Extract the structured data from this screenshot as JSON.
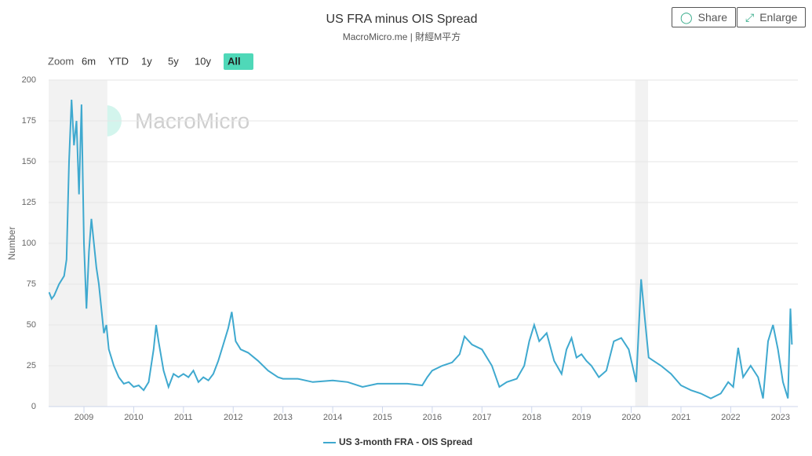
{
  "chart_data": {
    "type": "line",
    "title": "US FRA minus OIS Spread",
    "subtitle": "MacroMicro.me | 財經M平方",
    "watermark": "MacroMicro",
    "zoom_label": "Zoom",
    "zoom_options": [
      "6m",
      "YTD",
      "1y",
      "5y",
      "10y",
      "All"
    ],
    "zoom_selected": "All",
    "buttons": [
      "Share",
      "Enlarge"
    ],
    "y_label": "Number",
    "xlim": [
      2008.29,
      2023.35
    ],
    "xticks": [
      2009,
      2010,
      2011,
      2012,
      2013,
      2014,
      2015,
      2016,
      2017,
      2018,
      2019,
      2020,
      2021,
      2022,
      2023
    ],
    "ylim": [
      0,
      200
    ],
    "yticks": [
      0,
      25,
      50,
      75,
      100,
      125,
      150,
      175,
      200
    ],
    "grid": true,
    "shaded_ranges": [
      [
        2008.29,
        2009.47
      ],
      [
        2020.08,
        2020.34
      ]
    ],
    "x": [
      2008.3,
      2008.35,
      2008.4,
      2008.5,
      2008.6,
      2008.65,
      2008.7,
      2008.75,
      2008.8,
      2008.85,
      2008.9,
      2008.95,
      2009.0,
      2009.05,
      2009.1,
      2009.15,
      2009.2,
      2009.25,
      2009.3,
      2009.35,
      2009.4,
      2009.45,
      2009.5,
      2009.6,
      2009.7,
      2009.8,
      2009.9,
      2010.0,
      2010.1,
      2010.2,
      2010.3,
      2010.4,
      2010.45,
      2010.5,
      2010.6,
      2010.7,
      2010.8,
      2010.9,
      2011.0,
      2011.1,
      2011.2,
      2011.3,
      2011.4,
      2011.5,
      2011.6,
      2011.7,
      2011.8,
      2011.9,
      2011.97,
      2012.05,
      2012.15,
      2012.3,
      2012.5,
      2012.7,
      2012.9,
      2013.0,
      2013.3,
      2013.6,
      2014.0,
      2014.3,
      2014.6,
      2014.9,
      2015.2,
      2015.5,
      2015.8,
      2015.9,
      2016.0,
      2016.2,
      2016.4,
      2016.55,
      2016.65,
      2016.8,
      2017.0,
      2017.2,
      2017.35,
      2017.5,
      2017.7,
      2017.85,
      2017.95,
      2018.05,
      2018.15,
      2018.3,
      2018.45,
      2018.6,
      2018.7,
      2018.8,
      2018.9,
      2019.0,
      2019.1,
      2019.2,
      2019.35,
      2019.5,
      2019.65,
      2019.8,
      2019.95,
      2020.1,
      2020.2,
      2020.27,
      2020.35,
      2020.45,
      2020.6,
      2020.8,
      2021.0,
      2021.2,
      2021.4,
      2021.6,
      2021.8,
      2021.95,
      2022.05,
      2022.15,
      2022.25,
      2022.4,
      2022.55,
      2022.65,
      2022.75,
      2022.85,
      2022.95,
      2023.05,
      2023.15,
      2023.2,
      2023.23
    ],
    "series": [
      {
        "name": "US 3-month FRA - OIS Spread",
        "color": "#3fa9cf",
        "values": [
          70,
          66,
          68,
          75,
          80,
          90,
          150,
          188,
          160,
          175,
          130,
          185,
          100,
          60,
          95,
          115,
          100,
          85,
          75,
          60,
          45,
          50,
          35,
          25,
          18,
          14,
          15,
          12,
          13,
          10,
          15,
          35,
          50,
          40,
          22,
          12,
          20,
          18,
          20,
          18,
          22,
          15,
          18,
          16,
          20,
          28,
          38,
          48,
          58,
          40,
          35,
          33,
          28,
          22,
          18,
          17,
          17,
          15,
          16,
          15,
          12,
          14,
          14,
          14,
          13,
          18,
          22,
          25,
          27,
          32,
          43,
          38,
          35,
          25,
          12,
          15,
          17,
          25,
          40,
          50,
          40,
          45,
          28,
          20,
          35,
          42,
          30,
          32,
          28,
          25,
          18,
          22,
          40,
          42,
          35,
          15,
          78,
          55,
          30,
          28,
          25,
          20,
          13,
          10,
          8,
          5,
          8,
          15,
          12,
          36,
          18,
          25,
          18,
          5,
          40,
          50,
          35,
          15,
          5,
          60,
          38
        ]
      }
    ]
  }
}
